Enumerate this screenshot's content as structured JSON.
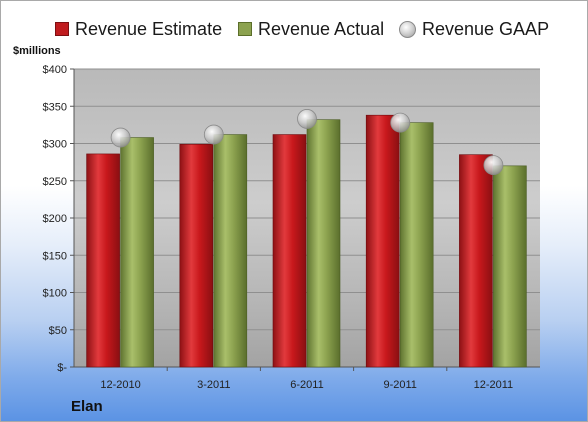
{
  "chart_data": {
    "type": "bar",
    "title": "",
    "ylabel": "$millions",
    "xlabel": "",
    "categories": [
      "12-2010",
      "3-2011",
      "6-2011",
      "9-2011",
      "12-2011"
    ],
    "series": [
      {
        "name": "Revenue Estimate",
        "type": "bar",
        "color": "#c01c1f",
        "values": [
          286,
          299,
          312,
          338,
          285
        ]
      },
      {
        "name": "Revenue Actual",
        "type": "bar",
        "color": "#8ca24f",
        "values": [
          308,
          312,
          332,
          328,
          270
        ]
      },
      {
        "name": "Revenue GAAP",
        "type": "marker",
        "color": "#bdbdbd",
        "values": [
          308,
          312,
          333,
          328,
          271
        ]
      }
    ],
    "ylim": [
      0,
      400
    ],
    "yticks": [
      0,
      50,
      100,
      150,
      200,
      250,
      300,
      350,
      400
    ],
    "ytick_labels": [
      "$-",
      "$50",
      "$100",
      "$150",
      "$200",
      "$250",
      "$300",
      "$350",
      "$400"
    ],
    "grid": true,
    "legend_position": "top"
  },
  "company": "Elan"
}
